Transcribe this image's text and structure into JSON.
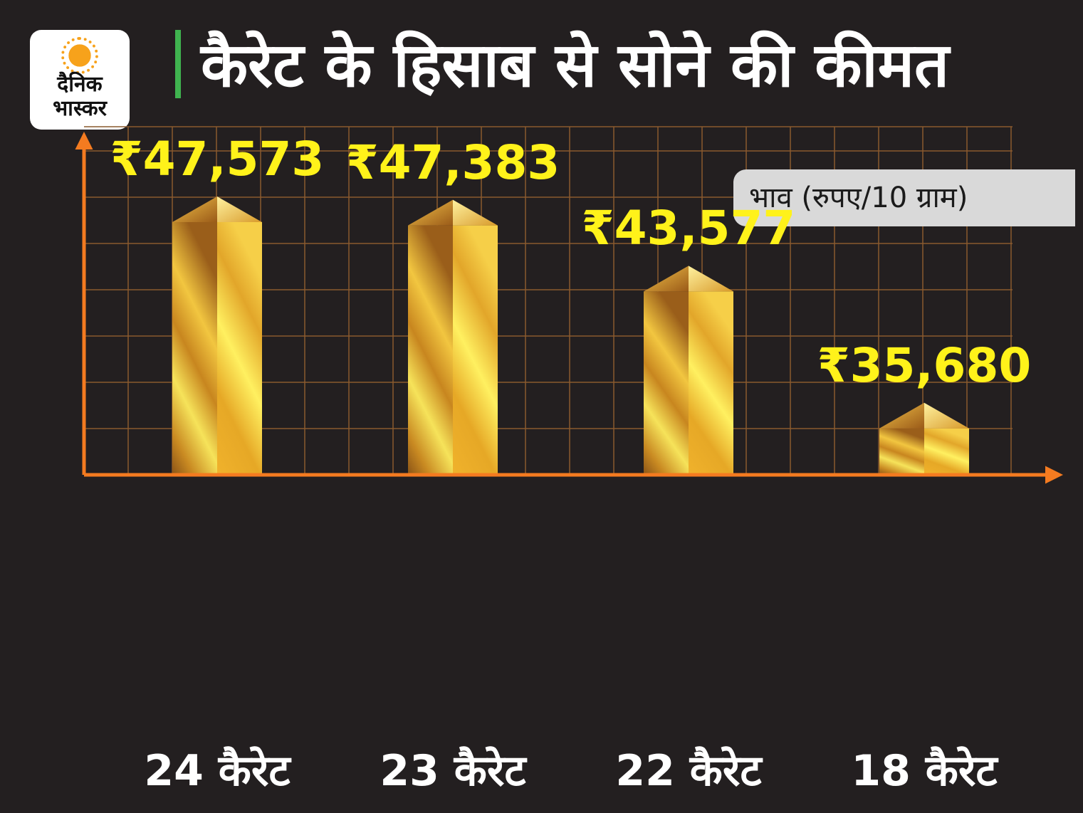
{
  "logo": {
    "line1": "दैनिक",
    "line2": "भास्कर"
  },
  "title": "कैरेट के हिसाब से सोने की कीमत",
  "unit_label": "भाव (रुपए/10 ग्राम)",
  "colors": {
    "background": "#231f20",
    "axis": "#f47b20",
    "grid": "#8a5a2e",
    "value_label": "#fff21a",
    "title_bar": "#3fb34f",
    "bar_gold": "#e8b830"
  },
  "chart_data": {
    "type": "bar",
    "categories": [
      "24 कैरेट",
      "23 कैरेट",
      "22 कैरेट",
      "18 कैरेट"
    ],
    "values": [
      47573,
      47383,
      43577,
      35680
    ],
    "value_labels": [
      "₹47,573",
      "₹47,383",
      "₹43,577",
      "₹35,680"
    ],
    "currency_symbol": "₹",
    "value_text": [
      "47,573",
      "47,383",
      "43,577",
      "35,680"
    ],
    "title": "कैरेट के हिसाब से सोने की कीमत",
    "ylabel": "भाव (रुपए/10 ग्राम)",
    "grid": true
  }
}
